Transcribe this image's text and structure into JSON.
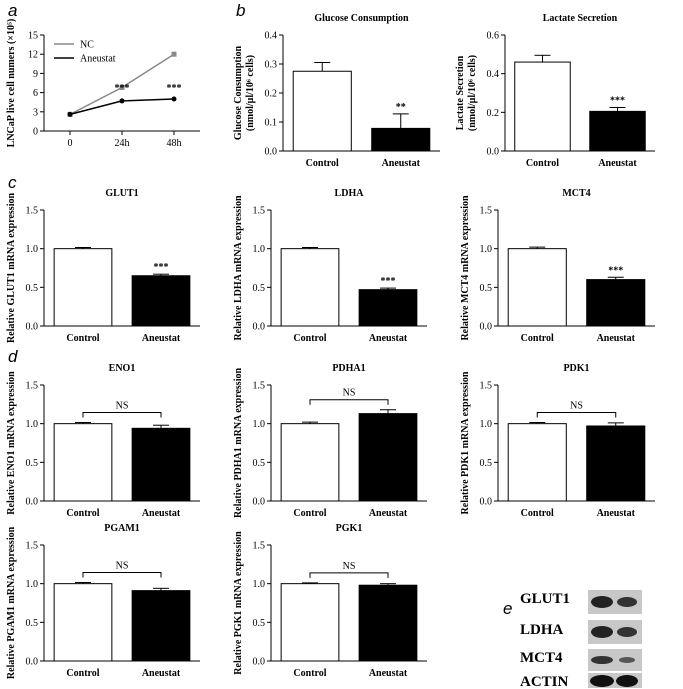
{
  "chart_data": [
    {
      "type": "line",
      "panel_label": "a",
      "ylabel": "LNCaP live cell numers (×10⁵)",
      "categories": [
        "0",
        "24h",
        "48h"
      ],
      "series": [
        {
          "name": "NC",
          "color": "#888888",
          "values": [
            2.6,
            6.8,
            12.0
          ]
        },
        {
          "name": "Aneustat",
          "color": "#000000",
          "values": [
            2.6,
            4.7,
            5.0
          ]
        }
      ],
      "annotations": [
        null,
        "***",
        "***"
      ],
      "ylim": [
        0,
        15
      ],
      "yticks": [
        0,
        3,
        6,
        9,
        12,
        15
      ],
      "legend": "upper left"
    },
    {
      "type": "bar",
      "panel_label": "b",
      "title": "Glucose Consumption",
      "ylabel": [
        "Glucose Consumption",
        "(nmol/μl/10⁶ cells)"
      ],
      "categories": [
        "Control",
        "Aneustat"
      ],
      "values": [
        0.275,
        0.078
      ],
      "errors": [
        0.03,
        0.05
      ],
      "colors": [
        "#ffffff",
        "#000000"
      ],
      "annotations": [
        null,
        "**"
      ],
      "ylim": [
        0,
        0.4
      ],
      "yticks": [
        {
          "value": 0,
          "label": "0.0"
        },
        0.1,
        0.2,
        0.3,
        0.4
      ]
    },
    {
      "type": "bar",
      "title": "Lactate Secretion",
      "ylabel": [
        "Lactate Secretion",
        "(nmol/μl/10⁶ cells)"
      ],
      "categories": [
        "Control",
        "Aneustat"
      ],
      "values": [
        0.46,
        0.205
      ],
      "errors": [
        0.035,
        0.02
      ],
      "colors": [
        "#ffffff",
        "#000000"
      ],
      "annotations": [
        null,
        "***"
      ],
      "ylim": [
        0,
        0.6
      ],
      "yticks": [
        {
          "value": 0,
          "label": "0.0"
        },
        0.2,
        0.4,
        0.6
      ]
    },
    {
      "type": "bar",
      "panel_label": "c",
      "title": "GLUT1",
      "ylabel": [
        "Relative GLUT1 mRNA expression"
      ],
      "categories": [
        "Control",
        "Aneustat"
      ],
      "values": [
        1.0,
        0.65
      ],
      "errors": [
        0.015,
        0.02
      ],
      "colors": [
        "#ffffff",
        "#000000"
      ],
      "annotations": [
        null,
        "***"
      ],
      "ylim": [
        0,
        1.5
      ],
      "yticks": [
        {
          "value": 0,
          "label": "0.0"
        },
        0.5,
        {
          "value": 1,
          "label": "1.0"
        },
        1.5
      ]
    },
    {
      "type": "bar",
      "title": "LDHA",
      "ylabel": [
        "Relative LDHA mRNA expression"
      ],
      "categories": [
        "Control",
        "Aneustat"
      ],
      "values": [
        1.0,
        0.47
      ],
      "errors": [
        0.015,
        0.02
      ],
      "colors": [
        "#ffffff",
        "#000000"
      ],
      "annotations": [
        null,
        "***"
      ],
      "ylim": [
        0,
        1.5
      ],
      "yticks": [
        {
          "value": 0,
          "label": "0.0"
        },
        0.5,
        {
          "value": 1,
          "label": "1.0"
        },
        1.5
      ]
    },
    {
      "type": "bar",
      "title": "MCT4",
      "ylabel": [
        "Relative MCT4 mRNA expression"
      ],
      "categories": [
        "Control",
        "Aneustat"
      ],
      "values": [
        1.0,
        0.6
      ],
      "errors": [
        0.02,
        0.03
      ],
      "colors": [
        "#ffffff",
        "#000000"
      ],
      "annotations": [
        null,
        "***"
      ],
      "ylim": [
        0,
        1.5
      ],
      "yticks": [
        {
          "value": 0,
          "label": "0.0"
        },
        0.5,
        {
          "value": 1,
          "label": "1.0"
        },
        1.5
      ]
    },
    {
      "type": "bar",
      "panel_label": "d",
      "title": "ENO1",
      "ylabel": [
        "Relative ENO1 mRNA expression"
      ],
      "categories": [
        "Control",
        "Aneustat"
      ],
      "values": [
        1.0,
        0.94
      ],
      "errors": [
        0.015,
        0.04
      ],
      "colors": [
        "#ffffff",
        "#000000"
      ],
      "bracket_label": "NS",
      "ylim": [
        0,
        1.5
      ],
      "yticks": [
        {
          "value": 0,
          "label": "0.0"
        },
        0.5,
        {
          "value": 1,
          "label": "1.0"
        },
        1.5
      ]
    },
    {
      "type": "bar",
      "title": "PDHA1",
      "ylabel": [
        "Relative PDHA1 mRNA expression"
      ],
      "categories": [
        "Control",
        "Aneustat"
      ],
      "values": [
        1.0,
        1.13
      ],
      "errors": [
        0.02,
        0.05
      ],
      "colors": [
        "#ffffff",
        "#000000"
      ],
      "bracket_label": "NS",
      "ylim": [
        0,
        1.5
      ],
      "yticks": [
        {
          "value": 0,
          "label": "0.0"
        },
        0.5,
        {
          "value": 1,
          "label": "1.0"
        },
        1.5
      ]
    },
    {
      "type": "bar",
      "title": "PDK1",
      "ylabel": [
        "Relative PDK1 mRNA expression"
      ],
      "categories": [
        "Control",
        "Aneustat"
      ],
      "values": [
        1.0,
        0.97
      ],
      "errors": [
        0.015,
        0.04
      ],
      "colors": [
        "#ffffff",
        "#000000"
      ],
      "bracket_label": "NS",
      "ylim": [
        0,
        1.5
      ],
      "yticks": [
        {
          "value": 0,
          "label": "0.0"
        },
        0.5,
        {
          "value": 1,
          "label": "1.0"
        },
        1.5
      ]
    },
    {
      "type": "bar",
      "title": "PGAM1",
      "ylabel": [
        "Relative PGAM1 mRNA expression"
      ],
      "categories": [
        "Control",
        "Aneustat"
      ],
      "values": [
        1.0,
        0.91
      ],
      "errors": [
        0.015,
        0.03
      ],
      "colors": [
        "#ffffff",
        "#000000"
      ],
      "bracket_label": "NS",
      "ylim": [
        0,
        1.5
      ],
      "yticks": [
        {
          "value": 0,
          "label": "0.0"
        },
        0.5,
        {
          "value": 1,
          "label": "1.0"
        },
        1.5
      ]
    },
    {
      "type": "bar",
      "title": "PGK1",
      "ylabel": [
        "Relative PGK1 mRNA expression"
      ],
      "categories": [
        "Control",
        "Aneustat"
      ],
      "values": [
        1.0,
        0.98
      ],
      "errors": [
        0.01,
        0.02
      ],
      "colors": [
        "#ffffff",
        "#000000"
      ],
      "bracket_label": "NS",
      "ylim": [
        0,
        1.5
      ],
      "yticks": [
        {
          "value": 0,
          "label": "0.0"
        },
        0.5,
        {
          "value": 1,
          "label": "1.0"
        },
        1.5
      ]
    }
  ],
  "blot": {
    "panel_label": "e",
    "rows": [
      "GLUT1",
      "LDHA",
      "MCT4",
      "ACTIN"
    ]
  }
}
